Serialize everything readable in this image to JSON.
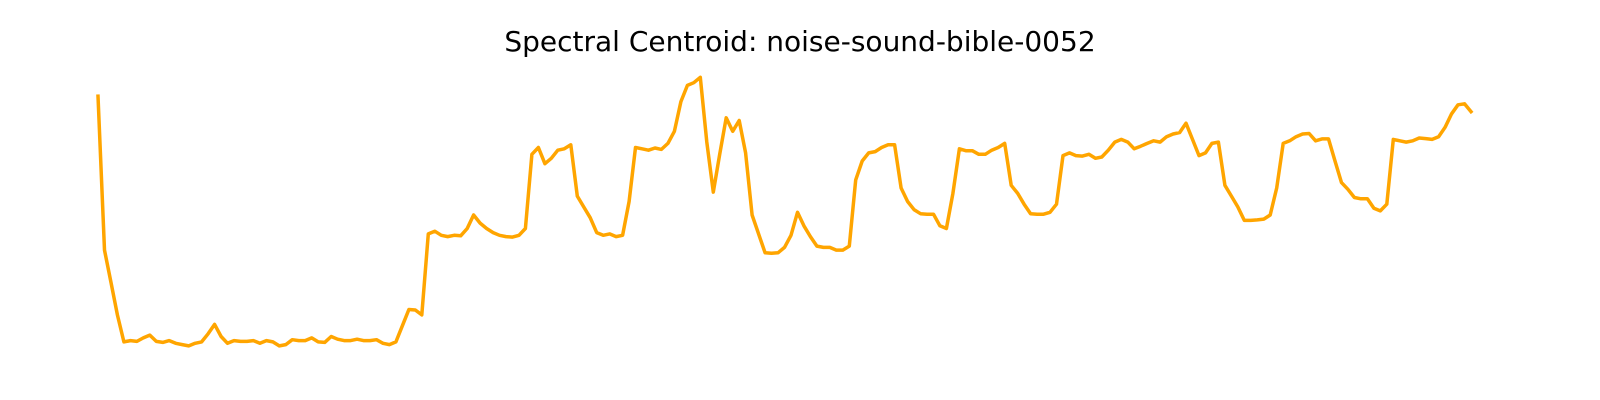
{
  "chart_data": {
    "type": "line",
    "title": "Spectral Centroid: noise-sound-bible-0052",
    "xlabel": "",
    "ylabel": "",
    "axes_visible": false,
    "grid": false,
    "legend": "none",
    "line_color": "#ffa500",
    "ylim": [
      0,
      100
    ],
    "series": [
      {
        "values": [
          94,
          37,
          25,
          13,
          3,
          3.5,
          3.2,
          4.5,
          5.5,
          3.2,
          2.8,
          3.5,
          2.5,
          2,
          1.5,
          2.5,
          3,
          6,
          9.5,
          5,
          2.5,
          3.5,
          3.2,
          3.2,
          3.5,
          2.5,
          3.5,
          3,
          1.5,
          2,
          3.8,
          3.5,
          3.5,
          4.5,
          3,
          2.8,
          5,
          4,
          3.5,
          3.5,
          4,
          3.5,
          3.5,
          3.8,
          2.5,
          2,
          3,
          9,
          15,
          14.8,
          13,
          43,
          44,
          42.5,
          42,
          42.5,
          42.3,
          45,
          50,
          47,
          45,
          43.5,
          42.5,
          42,
          41.8,
          42.5,
          45,
          72.5,
          75,
          69,
          71,
          74,
          74.5,
          76,
          57,
          53,
          49,
          43.5,
          42.5,
          43,
          42,
          42.5,
          55,
          75,
          74.5,
          74,
          74.8,
          74.3,
          76.5,
          81,
          92,
          98,
          99,
          101,
          77,
          58.5,
          72.5,
          86,
          81,
          85,
          73,
          50,
          43,
          36,
          35.8,
          36,
          38,
          42.5,
          51,
          46,
          42,
          38.5,
          38,
          38,
          37,
          37,
          38.5,
          63,
          70,
          73,
          73.5,
          75,
          76,
          76,
          60,
          55,
          52,
          50.5,
          50.3,
          50.3,
          46,
          45,
          58,
          74.5,
          73.8,
          73.8,
          72.5,
          72.5,
          74,
          75,
          76.5,
          61,
          58,
          54,
          50.5,
          50.3,
          50.3,
          51,
          54,
          72,
          73,
          72,
          71.8,
          72.5,
          71,
          71.5,
          74,
          77,
          78,
          77,
          74.5,
          75.5,
          76.5,
          77.5,
          77,
          79,
          80,
          80.5,
          84,
          78,
          72,
          73,
          76.5,
          77,
          61,
          57,
          53,
          48,
          48,
          48.2,
          48.5,
          50,
          60,
          76.5,
          77.5,
          79,
          80,
          80.2,
          77.5,
          78.2,
          78.2,
          70,
          62,
          59.5,
          56.5,
          56,
          56,
          52.5,
          51.5,
          54,
          78,
          77.5,
          77,
          77.5,
          78.5,
          78.3,
          78,
          79,
          82.5,
          87.5,
          90.8,
          91.2,
          88.3
        ]
      }
    ]
  }
}
